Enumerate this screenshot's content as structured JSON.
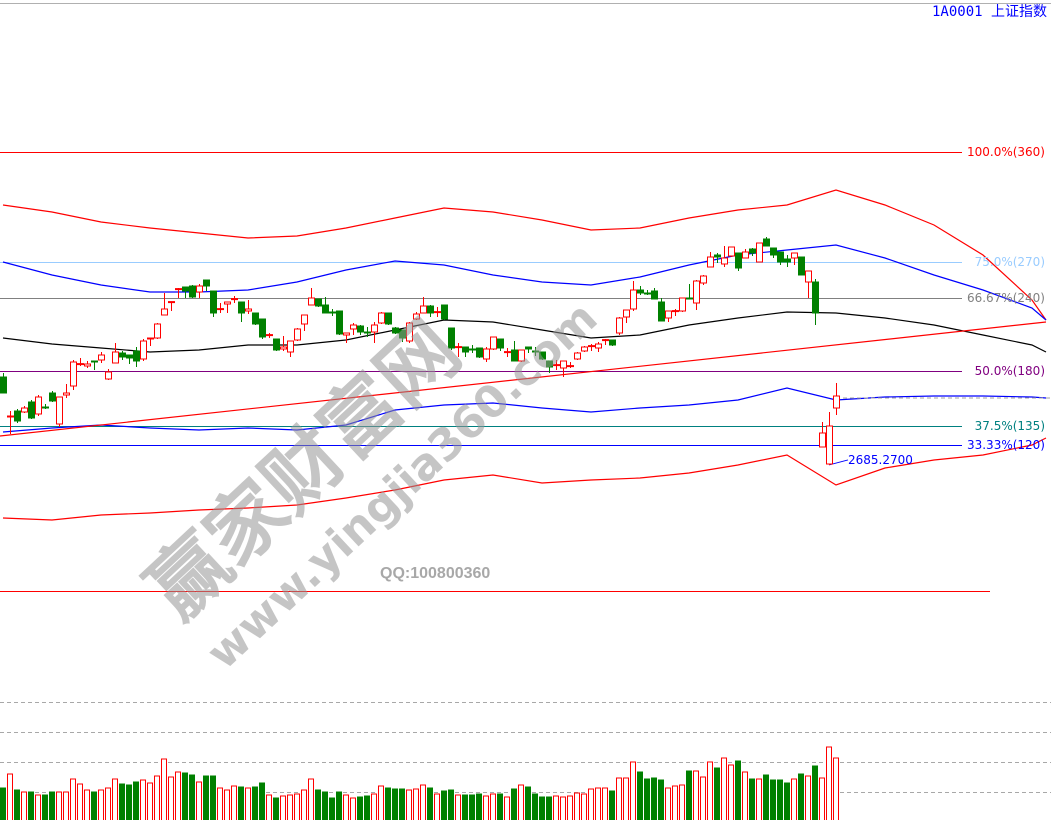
{
  "header": {
    "title": "1A0001  上证指数"
  },
  "watermark": {
    "brand": "赢家财富网",
    "site": "www.yingjia360.com",
    "qq": "QQ:100800360"
  },
  "colors": {
    "up": "#ff0000",
    "down": "#008000",
    "upper_env": "#ff0000",
    "upper_band": "#0000ff",
    "middle": "#000000",
    "lower_band": "#0000ff",
    "lower_env": "#ff0000",
    "trendline": "#ff0000"
  },
  "chart_data": {
    "type": "candlestick",
    "title": "1A0001  上证指数",
    "grid": false,
    "low_marker": {
      "label": "2685.2700",
      "value": 2685.27
    },
    "levels": [
      {
        "label": "100.0%(360)",
        "price": 4250,
        "color": "#ff0000"
      },
      {
        "label": "75.0%(270)",
        "price": 3700,
        "color": "#99ccff"
      },
      {
        "label": "66.67%(240)",
        "price": 3520,
        "color": "#808080"
      },
      {
        "label": "50.0%(180)",
        "price": 3155,
        "color": "#800080"
      },
      {
        "label": "37.5%(135)",
        "price": 2880,
        "color": "#008080"
      },
      {
        "label": "33.33%(120)",
        "price": 2785,
        "color": "#0000ff"
      }
    ],
    "candles_ohlc": [
      [
        3125,
        3145,
        3045,
        3045
      ],
      [
        2925,
        2955,
        2840,
        2930
      ],
      [
        2955,
        2965,
        2895,
        2905
      ],
      [
        2950,
        2980,
        2945,
        2970
      ],
      [
        3000,
        3010,
        2915,
        2920
      ],
      [
        2940,
        3035,
        2930,
        3025
      ],
      [
        2975,
        2990,
        2965,
        2970
      ],
      [
        3045,
        3055,
        3000,
        3005
      ],
      [
        2890,
        3025,
        2875,
        3025
      ],
      [
        3035,
        3090,
        3020,
        3045
      ],
      [
        3080,
        3210,
        3060,
        3200
      ],
      [
        3190,
        3220,
        3180,
        3192
      ],
      [
        3180,
        3205,
        3170,
        3190
      ],
      [
        3205,
        3205,
        3160,
        3203
      ],
      [
        3210,
        3250,
        3195,
        3235
      ],
      [
        3115,
        3165,
        3110,
        3150
      ],
      [
        3195,
        3295,
        3195,
        3250
      ],
      [
        3245,
        3255,
        3210,
        3225
      ],
      [
        3235,
        3235,
        3190,
        3220
      ],
      [
        3255,
        3275,
        3175,
        3205
      ],
      [
        3215,
        3315,
        3205,
        3305
      ],
      [
        3315,
        3320,
        3280,
        3320
      ],
      [
        3320,
        3395,
        3315,
        3390
      ],
      [
        3435,
        3545,
        3435,
        3465
      ],
      [
        3500,
        3500,
        3455,
        3502
      ],
      [
        3565,
        3570,
        3520,
        3567
      ],
      [
        3575,
        3575,
        3520,
        3555
      ],
      [
        3580,
        3585,
        3520,
        3525
      ],
      [
        3550,
        3590,
        3520,
        3580
      ],
      [
        3610,
        3610,
        3555,
        3580
      ],
      [
        3555,
        3555,
        3425,
        3445
      ],
      [
        3465,
        3495,
        3445,
        3467
      ],
      [
        3490,
        3500,
        3445,
        3500
      ],
      [
        3515,
        3530,
        3495,
        3517
      ],
      [
        3500,
        3500,
        3400,
        3445
      ],
      [
        3455,
        3510,
        3440,
        3465
      ],
      [
        3445,
        3445,
        3385,
        3390
      ],
      [
        3415,
        3415,
        3315,
        3325
      ],
      [
        3335,
        3345,
        3320,
        3337
      ],
      [
        3315,
        3315,
        3255,
        3260
      ],
      [
        3265,
        3330,
        3255,
        3275
      ],
      [
        3250,
        3305,
        3225,
        3305
      ],
      [
        3310,
        3370,
        3305,
        3365
      ],
      [
        3390,
        3435,
        3355,
        3435
      ],
      [
        3485,
        3570,
        3485,
        3520
      ],
      [
        3515,
        3515,
        3475,
        3480
      ],
      [
        3485,
        3525,
        3445,
        3445
      ],
      [
        3450,
        3465,
        3430,
        3448
      ],
      [
        3455,
        3455,
        3335,
        3340
      ],
      [
        3335,
        3345,
        3295,
        3345
      ],
      [
        3365,
        3395,
        3335,
        3385
      ],
      [
        3380,
        3385,
        3335,
        3350
      ],
      [
        3350,
        3375,
        3325,
        3348
      ],
      [
        3350,
        3400,
        3295,
        3385
      ],
      [
        3395,
        3450,
        3390,
        3445
      ],
      [
        3445,
        3445,
        3385,
        3390
      ],
      [
        3370,
        3375,
        3340,
        3345
      ],
      [
        3360,
        3360,
        3300,
        3320
      ],
      [
        3305,
        3400,
        3295,
        3395
      ],
      [
        3415,
        3450,
        3410,
        3440
      ],
      [
        3445,
        3525,
        3445,
        3480
      ],
      [
        3480,
        3485,
        3425,
        3445
      ],
      [
        3450,
        3475,
        3425,
        3452
      ],
      [
        3485,
        3485,
        3410,
        3415
      ],
      [
        3370,
        3370,
        3260,
        3270
      ],
      [
        3275,
        3295,
        3225,
        3277
      ],
      [
        3275,
        3275,
        3225,
        3250
      ],
      [
        3265,
        3285,
        3245,
        3263
      ],
      [
        3270,
        3270,
        3220,
        3225
      ],
      [
        3215,
        3275,
        3200,
        3265
      ],
      [
        3265,
        3325,
        3260,
        3325
      ],
      [
        3315,
        3315,
        3255,
        3270
      ],
      [
        3250,
        3270,
        3225,
        3252
      ],
      [
        3260,
        3305,
        3205,
        3205
      ],
      [
        3205,
        3260,
        3200,
        3260
      ],
      [
        3275,
        3275,
        3245,
        3265
      ],
      [
        3255,
        3275,
        3230,
        3253
      ],
      [
        3250,
        3250,
        3210,
        3215
      ],
      [
        3205,
        3205,
        3145,
        3175
      ],
      [
        3185,
        3210,
        3160,
        3187
      ],
      [
        3170,
        3205,
        3125,
        3205
      ],
      [
        3180,
        3200,
        3170,
        3182
      ],
      [
        3215,
        3250,
        3210,
        3245
      ],
      [
        3255,
        3280,
        3250,
        3275
      ],
      [
        3280,
        3290,
        3255,
        3282
      ],
      [
        3270,
        3300,
        3250,
        3290
      ],
      [
        3310,
        3315,
        3285,
        3312
      ],
      [
        3310,
        3310,
        3280,
        3285
      ],
      [
        3345,
        3425,
        3335,
        3420
      ],
      [
        3425,
        3460,
        3395,
        3460
      ],
      [
        3465,
        3605,
        3455,
        3560
      ],
      [
        3560,
        3580,
        3535,
        3545
      ],
      [
        3545,
        3560,
        3535,
        3543
      ],
      [
        3555,
        3570,
        3515,
        3515
      ],
      [
        3500,
        3520,
        3405,
        3405
      ],
      [
        3420,
        3455,
        3400,
        3455
      ],
      [
        3455,
        3465,
        3430,
        3457
      ],
      [
        3455,
        3520,
        3450,
        3520
      ],
      [
        3520,
        3590,
        3515,
        3515
      ],
      [
        3495,
        3610,
        3460,
        3605
      ],
      [
        3595,
        3635,
        3585,
        3630
      ],
      [
        3675,
        3750,
        3675,
        3725
      ],
      [
        3735,
        3745,
        3695,
        3725
      ],
      [
        3690,
        3780,
        3675,
        3720
      ],
      [
        3730,
        3775,
        3725,
        3775
      ],
      [
        3745,
        3745,
        3655,
        3670
      ],
      [
        3720,
        3765,
        3720,
        3750
      ],
      [
        3765,
        3770,
        3730,
        3745
      ],
      [
        3700,
        3795,
        3700,
        3795
      ],
      [
        3815,
        3825,
        3780,
        3780
      ],
      [
        3770,
        3770,
        3720,
        3735
      ],
      [
        3750,
        3750,
        3685,
        3700
      ],
      [
        3715,
        3735,
        3675,
        3700
      ],
      [
        3720,
        3745,
        3685,
        3745
      ],
      [
        3725,
        3725,
        3635,
        3635
      ],
      [
        3600,
        3655,
        3520,
        3655
      ],
      [
        3600,
        3615,
        3385,
        3445
      ],
      [
        2775,
        2900,
        2775,
        2845
      ],
      [
        2690,
        2950,
        2685.27,
        2880
      ],
      [
        2970,
        3095,
        2935,
        3030
      ]
    ],
    "volume": [
      32,
      46,
      30,
      28,
      28,
      25,
      25,
      28,
      28,
      28,
      41,
      36,
      30,
      28,
      30,
      32,
      41,
      36,
      35,
      38,
      40,
      37,
      44,
      61,
      43,
      48,
      47,
      45,
      38,
      44,
      44,
      32,
      30,
      34,
      33,
      32,
      33,
      37,
      25,
      22,
      24,
      25,
      26,
      30,
      41,
      30,
      28,
      22,
      28,
      25,
      22,
      23,
      24,
      26,
      34,
      32,
      31,
      31,
      30,
      31,
      35,
      32,
      26,
      29,
      30,
      25,
      25,
      25,
      26,
      24,
      26,
      26,
      23,
      31,
      35,
      33,
      26,
      23,
      23,
      24,
      23,
      24,
      27,
      26,
      31,
      32,
      32,
      29,
      42,
      42,
      58,
      48,
      41,
      42,
      40,
      32,
      34,
      35,
      49,
      49,
      43,
      58,
      52,
      62,
      55,
      59,
      48,
      41,
      41,
      45,
      40,
      40,
      37,
      41,
      46,
      44,
      54,
      42,
      73,
      62
    ],
    "lines": {
      "index": [
        1,
        8,
        15,
        22,
        29,
        36,
        43,
        50,
        57,
        64,
        71,
        78,
        85,
        92,
        99,
        106,
        113,
        120,
        127,
        134,
        141,
        148,
        150
      ],
      "upper_envelope": [
        3985,
        3950,
        3900,
        3870,
        3845,
        3820,
        3830,
        3870,
        3920,
        3970,
        3950,
        3910,
        3860,
        3870,
        3920,
        3960,
        3985,
        4060,
        3985,
        3885,
        3735,
        3510,
        3410
      ],
      "upper_band": [
        3700,
        3635,
        3585,
        3550,
        3550,
        3560,
        3600,
        3660,
        3705,
        3685,
        3635,
        3600,
        3585,
        3625,
        3685,
        3735,
        3760,
        3785,
        3720,
        3635,
        3560,
        3470,
        3410
      ],
      "middle": [
        3320,
        3290,
        3270,
        3250,
        3260,
        3285,
        3285,
        3310,
        3360,
        3410,
        3400,
        3360,
        3320,
        3335,
        3385,
        3420,
        3450,
        3445,
        3420,
        3385,
        3335,
        3285,
        3250
      ],
      "lower_band": [
        2850,
        2870,
        2885,
        2870,
        2860,
        2870,
        2860,
        2885,
        2960,
        2985,
        2995,
        2970,
        2950,
        2970,
        2985,
        3010,
        3070,
        3010,
        3025,
        3030,
        3030,
        3025,
        3020
      ],
      "lower_envelope": [
        2420,
        2410,
        2435,
        2445,
        2460,
        2470,
        2485,
        2520,
        2560,
        2610,
        2635,
        2595,
        2610,
        2620,
        2645,
        2685,
        2735,
        2585,
        2670,
        2710,
        2735,
        2785,
        2820
      ],
      "trendline": [
        [
          1,
          2830
        ],
        [
          150,
          3400
        ]
      ]
    }
  }
}
